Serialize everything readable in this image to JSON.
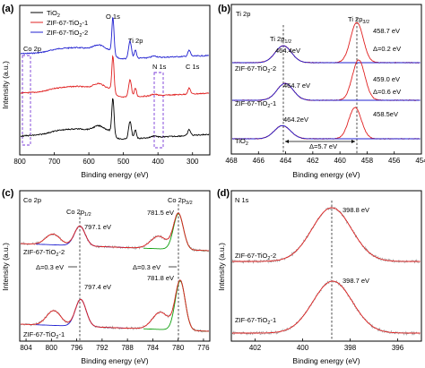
{
  "chart_data": [
    {
      "panel": "(a)",
      "type": "line",
      "xlabel": "Binding energy (eV)",
      "ylabel": "Intensity (a.u.)",
      "xlim": [
        800,
        250
      ],
      "xticks": [
        800,
        700,
        600,
        500,
        400,
        300
      ],
      "legend": [
        "TiO2",
        "ZIF-67-TiO2-1",
        "ZIF-67-TiO2-2"
      ],
      "colors": [
        "#000000",
        "#e02020",
        "#2020d0"
      ],
      "peaks": [
        {
          "label": "Co 2p",
          "x": 780
        },
        {
          "label": "O 1s",
          "x": 530
        },
        {
          "label": "Ti 2p",
          "x": 458
        },
        {
          "label": "N 1s",
          "x": 399
        },
        {
          "label": "C 1s",
          "x": 285
        }
      ]
    },
    {
      "panel": "(b)",
      "type": "line",
      "title": "Ti 2p",
      "xlabel": "Binding energy (eV)",
      "xlim": [
        468,
        454
      ],
      "xticks": [
        468,
        466,
        464,
        462,
        460,
        458,
        456,
        454
      ],
      "series": [
        {
          "name": "ZIF-67-TiO2-2",
          "ti2p12": 464.4,
          "ti2p32": 458.7,
          "delta": "Δ=0.2 eV"
        },
        {
          "name": "ZIF-67-TiO2-1",
          "ti2p12": 464.7,
          "ti2p32": 459.0,
          "delta": "Δ=0.6 eV"
        },
        {
          "name": "TiO2",
          "ti2p12": 464.2,
          "ti2p32": 458.5,
          "delta": "Δ=5.7 eV"
        }
      ],
      "labels": {
        "p12": "Ti 2p1/2",
        "p32": "Ti 2p3/2",
        "v1": "464.4eV",
        "v2": "458.7 eV",
        "v3": "Δ=0.2 eV",
        "v4": "464.7 eV",
        "v5": "459.0 eV",
        "v6": "Δ=0.6 eV",
        "v7": "464.2eV",
        "v8": "458.5eV",
        "v9": "Δ=5.7 eV",
        "s1": "ZIF-67-TiO2-2",
        "s2": "ZIF-67-TiO2-1",
        "s3": "TiO2"
      }
    },
    {
      "panel": "(c)",
      "type": "line",
      "title": "Co 2p",
      "xlabel": "Binding energy (eV)",
      "ylabel": "Intensity (a.u.)",
      "xlim": [
        805,
        775
      ],
      "xticks": [
        804,
        800,
        796,
        792,
        788,
        784,
        780,
        776
      ],
      "series": [
        {
          "name": "ZIF-67-TiO2-2",
          "co2p12": 797.1,
          "co2p32": 781.5
        },
        {
          "name": "ZIF-67-TiO2-1",
          "co2p12": 797.4,
          "co2p32": 781.8
        }
      ],
      "labels": {
        "p12": "Co 2p1/2",
        "p32": "Co 2p3/2",
        "v1": "797.1 eV",
        "v2": "781.5 eV",
        "v3": "797.4 eV",
        "v4": "781.8 eV",
        "d1": "Δ=0.3 eV",
        "d2": "Δ=0.3 eV",
        "s1": "ZIF-67-TiO2-2",
        "s2": "ZIF-67-TiO2-1"
      }
    },
    {
      "panel": "(d)",
      "type": "line",
      "title": "N 1s",
      "xlabel": "Binding energy (eV)",
      "ylabel": "Intensity (a.u.)",
      "xlim": [
        403,
        395
      ],
      "xticks": [
        402,
        400,
        398,
        396
      ],
      "series": [
        {
          "name": "ZIF-67-TiO2-2",
          "peak": 398.8
        },
        {
          "name": "ZIF-67-TiO2-1",
          "peak": 398.7
        }
      ],
      "labels": {
        "v1": "398.8 eV",
        "v2": "398.7 eV",
        "s1": "ZIF-67-TiO2-2",
        "s2": "ZIF-67-TiO2-1"
      }
    }
  ]
}
